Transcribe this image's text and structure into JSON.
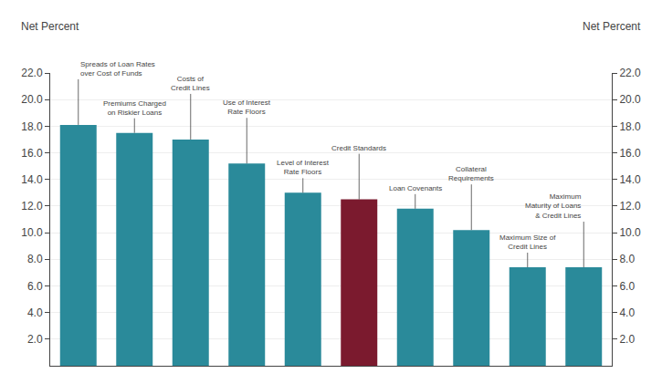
{
  "chart_data": {
    "type": "bar",
    "categories": [
      null,
      null,
      null,
      null,
      null,
      null,
      null,
      null,
      null,
      null
    ],
    "values": [
      18.1,
      17.5,
      17.0,
      15.2,
      13.0,
      12.5,
      11.8,
      10.2,
      7.4,
      7.4
    ],
    "colors": [
      "#2a8a9a",
      "#2a8a9a",
      "#2a8a9a",
      "#2a8a9a",
      "#2a8a9a",
      "#7b1a2e",
      "#2a8a9a",
      "#2a8a9a",
      "#2a8a9a",
      "#2a8a9a"
    ],
    "ylim": [
      0,
      22.0
    ],
    "yticks": [
      {
        "value": 2.0,
        "label": "2.0"
      },
      {
        "value": 4.0,
        "label": "4.0"
      },
      {
        "value": 6.0,
        "label": "6.0"
      },
      {
        "value": 8.0,
        "label": "8.0"
      },
      {
        "value": 10.0,
        "label": "10.0"
      },
      {
        "value": 12.0,
        "label": "12.0"
      },
      {
        "value": 14.0,
        "label": "14.0"
      },
      {
        "value": 16.0,
        "label": "16.0"
      },
      {
        "value": 18.0,
        "label": "18.0"
      },
      {
        "value": 20.0,
        "label": "20.0"
      },
      {
        "value": 22.0,
        "label": "22.0"
      }
    ],
    "y2lim": [
      0,
      22.0
    ],
    "y2ticks": [
      {
        "value": 2.0,
        "label": "2.0"
      },
      {
        "value": 4.0,
        "label": "4.0"
      },
      {
        "value": 6.0,
        "label": "6.0"
      },
      {
        "value": 8.0,
        "label": "8.0"
      },
      {
        "value": 10.0,
        "label": "10.0"
      },
      {
        "value": 12.0,
        "label": "12.0"
      },
      {
        "value": 14.0,
        "label": "14.0"
      },
      {
        "value": 16.0,
        "label": "16.0"
      },
      {
        "value": 18.0,
        "label": "18.0"
      },
      {
        "value": 20.0,
        "label": "20.0"
      },
      {
        "value": 22.0,
        "label": "22.0"
      }
    ],
    "ylabel": "Net Percent",
    "y2label": "Net Percent",
    "annotations": [
      "Spreads of Loan Rates\nover Cost of Funds",
      "Premiums Charged\non Riskier Loans",
      "Costs of\nCredit Lines",
      "Use of Interest\nRate Floors",
      "Level of Interest\nRate Floors",
      "Credit Standards",
      "Loan Covenants",
      "Collateral\nRequirements",
      "Maximum Size of\nCredit Lines",
      "Maximum\nMaturity of Loans\n& Credit Lines"
    ],
    "grid": true,
    "tick_labels": "y"
  }
}
